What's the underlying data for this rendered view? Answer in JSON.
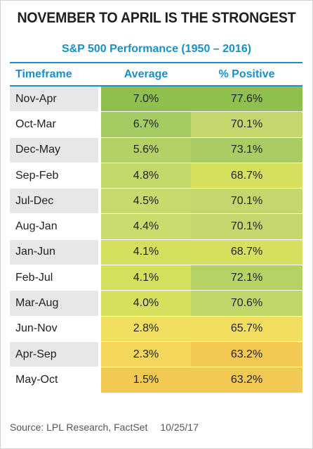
{
  "title": "NOVEMBER TO APRIL IS THE STRONGEST",
  "subtitle": "S&P 500 Performance (1950 – 2016)",
  "source": "Source: LPL Research, FactSet",
  "date": "10/25/17",
  "colors": {
    "accent_blue": "#1a8fc9",
    "scale_high": "#8fbf4d",
    "scale_mid": "#d4e05a",
    "scale_low": "#f1c953"
  },
  "chart_data": {
    "type": "table",
    "columns": [
      "Timeframe",
      "Average",
      "% Positive"
    ],
    "rows": [
      {
        "timeframe": "Nov-Apr",
        "average": "7.0%",
        "positive": "77.6%",
        "average_value": 7.0,
        "positive_value": 77.6,
        "average_color": "#8fbf4d",
        "positive_color": "#8fbf4d"
      },
      {
        "timeframe": "Oct-Mar",
        "average": "6.7%",
        "positive": "70.1%",
        "average_value": 6.7,
        "positive_value": 70.1,
        "average_color": "#a5cc63",
        "positive_color": "#c3d76c"
      },
      {
        "timeframe": "Dec-May",
        "average": "5.6%",
        "positive": "73.1%",
        "average_value": 5.6,
        "positive_value": 73.1,
        "average_color": "#b3d164",
        "positive_color": "#a9cd63"
      },
      {
        "timeframe": "Sep-Feb",
        "average": "4.8%",
        "positive": "68.7%",
        "average_value": 4.8,
        "positive_value": 68.7,
        "average_color": "#c2d86b",
        "positive_color": "#d7e05e"
      },
      {
        "timeframe": "Jul-Dec",
        "average": "4.5%",
        "positive": "70.1%",
        "average_value": 4.5,
        "positive_value": 70.1,
        "average_color": "#c8da6c",
        "positive_color": "#c3d76c"
      },
      {
        "timeframe": "Aug-Jan",
        "average": "4.4%",
        "positive": "70.1%",
        "average_value": 4.4,
        "positive_value": 70.1,
        "average_color": "#c9db6c",
        "positive_color": "#c3d76c"
      },
      {
        "timeframe": "Jan-Jun",
        "average": "4.1%",
        "positive": "68.7%",
        "average_value": 4.1,
        "positive_value": 68.7,
        "average_color": "#d3df5d",
        "positive_color": "#d7e05e"
      },
      {
        "timeframe": "Feb-Jul",
        "average": "4.1%",
        "positive": "72.1%",
        "average_value": 4.1,
        "positive_value": 72.1,
        "average_color": "#d3df5d",
        "positive_color": "#b5d265"
      },
      {
        "timeframe": "Mar-Aug",
        "average": "4.0%",
        "positive": "70.6%",
        "average_value": 4.0,
        "positive_value": 70.6,
        "average_color": "#d6e05d",
        "positive_color": "#bfd669"
      },
      {
        "timeframe": "Jun-Nov",
        "average": "2.8%",
        "positive": "65.7%",
        "average_value": 2.8,
        "positive_value": 65.7,
        "average_color": "#f3df5e",
        "positive_color": "#f2de5c"
      },
      {
        "timeframe": "Apr-Sep",
        "average": "2.3%",
        "positive": "63.2%",
        "average_value": 2.3,
        "positive_value": 63.2,
        "average_color": "#f4d65a",
        "positive_color": "#f1c953"
      },
      {
        "timeframe": "May-Oct",
        "average": "1.5%",
        "positive": "63.2%",
        "average_value": 1.5,
        "positive_value": 63.2,
        "average_color": "#f1c953",
        "positive_color": "#f1c953"
      }
    ]
  }
}
